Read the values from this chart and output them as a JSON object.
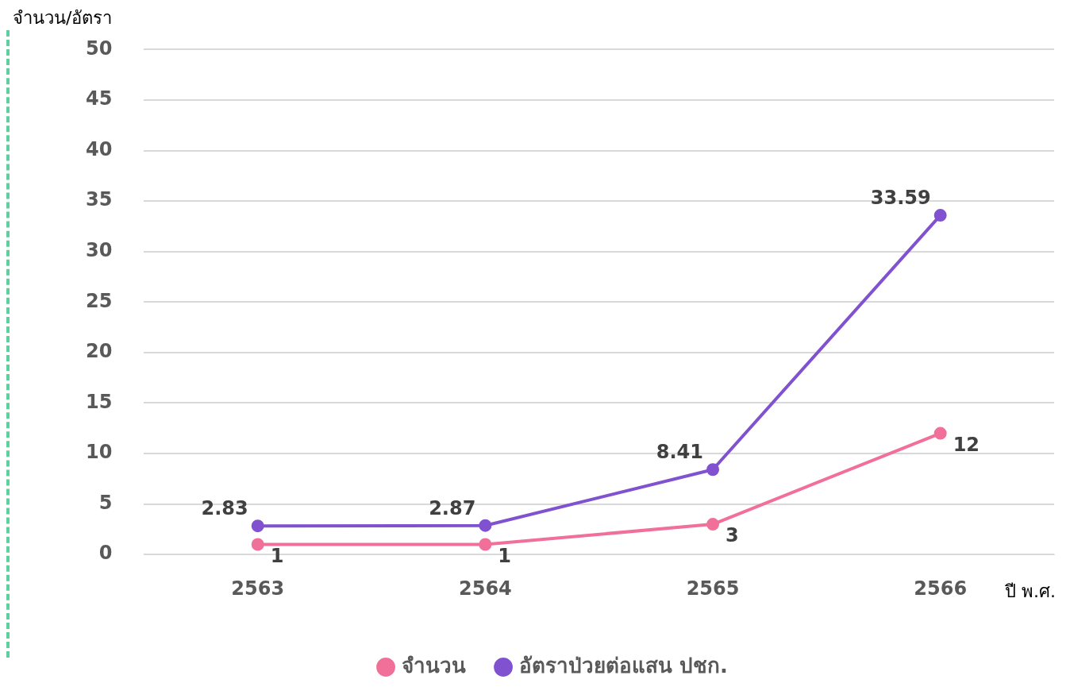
{
  "chart_data": {
    "type": "line",
    "xlabel": "ปี พ.ศ.",
    "ylabel": "จำนวน/อัตรา",
    "categories": [
      "2563",
      "2564",
      "2565",
      "2566"
    ],
    "series": [
      {
        "name": "จำนวน",
        "color": "#f07099",
        "values": [
          1,
          1,
          3,
          12
        ]
      },
      {
        "name": "อัตราป่วยต่อแสน ปชก.",
        "color": "#8152d0",
        "values": [
          2.83,
          2.87,
          8.41,
          33.59
        ]
      }
    ],
    "ylim": [
      0,
      50
    ],
    "yticks": [
      0,
      5,
      10,
      15,
      20,
      25,
      30,
      35,
      40,
      45,
      50
    ],
    "grid": "y",
    "legend": "bottom",
    "marker": "circle",
    "line_style": "solid",
    "data_labels": true
  }
}
